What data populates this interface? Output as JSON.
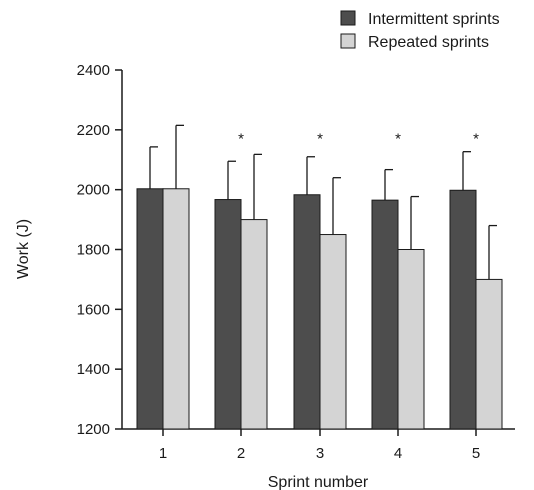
{
  "chart_data": {
    "type": "bar",
    "xlabel": "Sprint number",
    "ylabel": "Work (J)",
    "ylim": [
      1200,
      2400
    ],
    "yticks": [
      1200,
      1400,
      1600,
      1800,
      2000,
      2200,
      2400
    ],
    "categories": [
      "1",
      "2",
      "3",
      "4",
      "5"
    ],
    "legend_position": "top-right",
    "series": [
      {
        "name": "Intermittent sprints",
        "color": "#4d4d4d",
        "values": [
          2003,
          1967,
          1983,
          1965,
          1998
        ],
        "error_upper": [
          2143,
          2095,
          2110,
          2067,
          2127
        ]
      },
      {
        "name": "Repeated sprints",
        "color": "#d4d4d4",
        "values": [
          2003,
          1900,
          1850,
          1800,
          1700
        ],
        "error_upper": [
          2215,
          2118,
          2040,
          1977,
          1880
        ]
      }
    ],
    "annotations": [
      {
        "category": "2",
        "text": "*",
        "y": 2185
      },
      {
        "category": "3",
        "text": "*",
        "y": 2185
      },
      {
        "category": "4",
        "text": "*",
        "y": 2185
      },
      {
        "category": "5",
        "text": "*",
        "y": 2185
      }
    ]
  }
}
